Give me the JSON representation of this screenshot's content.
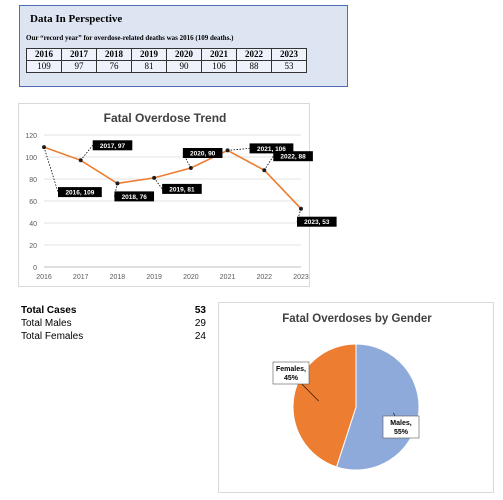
{
  "perspective": {
    "title": "Data In Perspective",
    "note": "Our “record year” for overdose-related deaths was 2016 (109 deaths.)",
    "years": [
      "2016",
      "2017",
      "2018",
      "2019",
      "2020",
      "2021",
      "2022",
      "2023"
    ],
    "deaths": [
      "109",
      "97",
      "76",
      "81",
      "90",
      "106",
      "88",
      "53"
    ]
  },
  "totals": [
    {
      "label": "Total Cases",
      "value": "53"
    },
    {
      "label": "Total Males",
      "value": "29"
    },
    {
      "label": "Total Females",
      "value": "24"
    }
  ],
  "colors": {
    "line": "#ed7d31",
    "female": "#ed7d31",
    "male": "#8eaadb",
    "box_bg": "#dde5f3",
    "box_border": "#4d6eb5"
  },
  "chart_data": [
    {
      "type": "line",
      "title": "Fatal Overdose Trend",
      "x": [
        2016,
        2017,
        2018,
        2019,
        2020,
        2021,
        2022,
        2023
      ],
      "series": [
        {
          "values": [
            109,
            97,
            76,
            81,
            90,
            106,
            88,
            53
          ]
        }
      ],
      "data_labels": [
        "2016, 109",
        "2017, 97",
        "2018, 76",
        "2019, 81",
        "2020, 90",
        "2021, 106",
        "2022, 88",
        "2023, 53"
      ],
      "ylim": [
        0,
        120
      ],
      "yticks": [
        0,
        20,
        40,
        60,
        80,
        100,
        120
      ],
      "xlabel": "",
      "ylabel": "",
      "grid": true
    },
    {
      "type": "pie",
      "title": "Fatal Overdoses by Gender",
      "categories": [
        "Males",
        "Females"
      ],
      "values": [
        55,
        45
      ],
      "labels": [
        "Males,\n55%",
        "Females,\n45%"
      ]
    }
  ]
}
